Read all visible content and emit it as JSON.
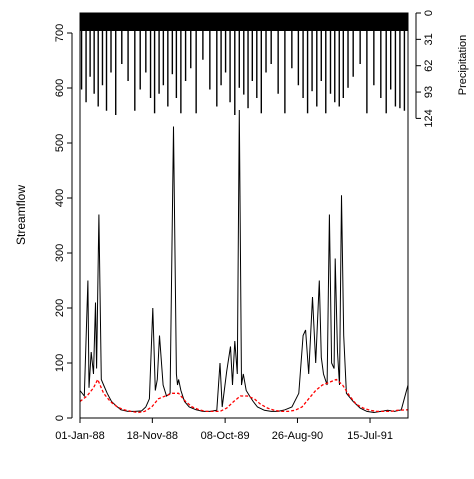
{
  "chart_data": {
    "type": "line",
    "title": "",
    "ylabel": "Streamflow",
    "y2label": "Precipitation",
    "xlim": [
      "1988-01-01",
      "1991-12-31"
    ],
    "ylim": [
      0,
      730
    ],
    "y2lim": [
      0,
      124
    ],
    "y2_inverted": true,
    "grid": false,
    "legend": "none",
    "x_ticks": [
      "01-Jan-88",
      "18-Nov-88",
      "08-Oct-89",
      "26-Aug-90",
      "15-Jul-91"
    ],
    "x_tick_dates": [
      "1988-01-01",
      "1988-11-18",
      "1989-10-08",
      "1990-08-26",
      "1991-07-15"
    ],
    "y_ticks": [
      0,
      100,
      200,
      300,
      400,
      500,
      600,
      700
    ],
    "y2_ticks": [
      0,
      31,
      62,
      93,
      124
    ],
    "colors": {
      "observed": "#000000",
      "simulated": "#ff0000",
      "precip": "#000000"
    },
    "series": [
      {
        "role": "observed",
        "style": "solid",
        "x": [
          "1988-01-01",
          "1988-01-20",
          "1988-02-05",
          "1988-02-10",
          "1988-02-20",
          "1988-03-01",
          "1988-03-10",
          "1988-03-15",
          "1988-03-25",
          "1988-04-05",
          "1988-04-15",
          "1988-05-01",
          "1988-05-20",
          "1988-06-10",
          "1988-07-01",
          "1988-08-01",
          "1988-09-01",
          "1988-10-01",
          "1988-10-20",
          "1988-11-05",
          "1988-11-20",
          "1988-12-01",
          "1988-12-10",
          "1988-12-20",
          "1989-01-05",
          "1989-01-20",
          "1989-02-05",
          "1989-02-20",
          "1989-03-05",
          "1989-03-10",
          "1989-03-15",
          "1989-03-25",
          "1989-04-10",
          "1989-05-01",
          "1989-06-01",
          "1989-07-01",
          "1989-08-01",
          "1989-09-01",
          "1989-09-15",
          "1989-09-25",
          "1989-10-01",
          "1989-10-15",
          "1989-11-01",
          "1989-11-10",
          "1989-11-20",
          "1989-12-01",
          "1989-12-10",
          "1989-12-20",
          "1989-12-28",
          "1990-01-10",
          "1990-01-25",
          "1990-02-10",
          "1990-03-01",
          "1990-04-01",
          "1990-05-01",
          "1990-06-01",
          "1990-07-01",
          "1990-08-01",
          "1990-09-01",
          "1990-09-20",
          "1990-10-01",
          "1990-10-15",
          "1990-11-01",
          "1990-11-15",
          "1990-12-01",
          "1990-12-10",
          "1990-12-20",
          "1991-01-05",
          "1991-01-15",
          "1991-01-25",
          "1991-02-05",
          "1991-02-10",
          "1991-02-20",
          "1991-03-01",
          "1991-03-10",
          "1991-03-20",
          "1991-04-01",
          "1991-05-01",
          "1991-06-01",
          "1991-07-01",
          "1991-08-01",
          "1991-09-01",
          "1991-10-01",
          "1991-11-01",
          "1991-12-01",
          "1991-12-31"
        ],
        "values": [
          50,
          40,
          250,
          55,
          120,
          80,
          210,
          90,
          370,
          70,
          60,
          45,
          30,
          22,
          15,
          12,
          12,
          13,
          20,
          35,
          200,
          50,
          70,
          150,
          60,
          40,
          45,
          530,
          80,
          60,
          70,
          50,
          30,
          20,
          15,
          12,
          12,
          14,
          100,
          20,
          40,
          85,
          130,
          60,
          140,
          80,
          560,
          60,
          80,
          50,
          40,
          30,
          20,
          14,
          12,
          12,
          15,
          20,
          45,
          150,
          160,
          80,
          220,
          100,
          250,
          110,
          80,
          60,
          370,
          100,
          90,
          290,
          120,
          60,
          405,
          150,
          45,
          30,
          18,
          12,
          10,
          12,
          14,
          12,
          15,
          60
        ]
      },
      {
        "role": "simulated",
        "style": "dashed",
        "x": [
          "1988-01-01",
          "1988-02-01",
          "1988-03-01",
          "1988-03-20",
          "1988-04-15",
          "1988-05-15",
          "1988-06-15",
          "1988-07-15",
          "1988-08-15",
          "1988-09-15",
          "1988-10-15",
          "1988-11-15",
          "1988-12-15",
          "1989-01-15",
          "1989-02-15",
          "1989-03-15",
          "1989-04-15",
          "1989-05-15",
          "1989-06-15",
          "1989-07-15",
          "1989-08-15",
          "1989-09-15",
          "1989-10-15",
          "1989-11-15",
          "1989-12-15",
          "1990-01-15",
          "1990-02-15",
          "1990-03-15",
          "1990-04-15",
          "1990-05-15",
          "1990-06-15",
          "1990-07-15",
          "1990-08-15",
          "1990-09-15",
          "1990-10-15",
          "1990-11-15",
          "1990-12-15",
          "1991-01-15",
          "1991-02-15",
          "1991-03-15",
          "1991-04-15",
          "1991-05-15",
          "1991-06-15",
          "1991-07-15",
          "1991-08-15",
          "1991-09-15",
          "1991-10-15",
          "1991-11-15",
          "1991-12-31"
        ],
        "values": [
          30,
          40,
          55,
          70,
          45,
          30,
          20,
          15,
          12,
          10,
          12,
          20,
          35,
          40,
          45,
          45,
          30,
          20,
          15,
          12,
          12,
          12,
          18,
          30,
          40,
          40,
          35,
          25,
          18,
          14,
          12,
          12,
          14,
          20,
          35,
          50,
          60,
          65,
          70,
          60,
          40,
          25,
          18,
          14,
          12,
          12,
          12,
          14,
          15
        ]
      }
    ],
    "precip": {
      "dates": [
        "1988-01-08",
        "1988-01-28",
        "1988-02-15",
        "1988-03-04",
        "1988-03-22",
        "1988-04-10",
        "1988-04-28",
        "1988-05-18",
        "1988-06-08",
        "1988-07-05",
        "1988-08-02",
        "1988-09-01",
        "1988-09-25",
        "1988-10-20",
        "1988-11-10",
        "1988-11-28",
        "1988-12-18",
        "1989-01-06",
        "1989-01-26",
        "1989-02-15",
        "1989-03-05",
        "1989-03-25",
        "1989-04-15",
        "1989-05-08",
        "1989-06-01",
        "1989-07-01",
        "1989-08-01",
        "1989-09-01",
        "1989-09-20",
        "1989-10-10",
        "1989-10-30",
        "1989-11-20",
        "1989-12-10",
        "1989-12-30",
        "1990-01-18",
        "1990-02-06",
        "1990-02-26",
        "1990-03-18",
        "1990-04-08",
        "1990-05-01",
        "1990-06-01",
        "1990-07-01",
        "1990-08-01",
        "1990-08-30",
        "1990-09-20",
        "1990-10-10",
        "1990-10-30",
        "1990-11-20",
        "1990-12-10",
        "1990-12-30",
        "1991-01-20",
        "1991-02-08",
        "1991-02-28",
        "1991-03-18",
        "1991-04-08",
        "1991-05-01",
        "1991-06-01",
        "1991-07-01",
        "1991-08-01",
        "1991-09-01",
        "1991-09-25",
        "1991-10-15",
        "1991-11-05",
        "1991-11-25",
        "1991-12-15"
      ],
      "values": [
        90,
        105,
        75,
        95,
        110,
        85,
        115,
        70,
        120,
        60,
        80,
        115,
        90,
        70,
        100,
        118,
        95,
        85,
        110,
        72,
        100,
        118,
        80,
        65,
        118,
        55,
        90,
        110,
        85,
        70,
        105,
        120,
        88,
        96,
        112,
        80,
        100,
        118,
        70,
        60,
        95,
        118,
        65,
        85,
        100,
        118,
        92,
        110,
        80,
        118,
        95,
        105,
        110,
        100,
        88,
        75,
        60,
        118,
        85,
        100,
        118,
        90,
        110,
        112,
        115
      ]
    }
  }
}
